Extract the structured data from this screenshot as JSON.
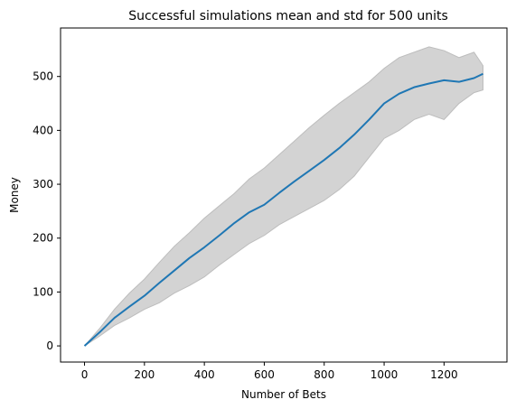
{
  "chart_data": {
    "type": "line",
    "title": "Successful simulations mean and std for 500 units",
    "xlabel": "Number of Bets",
    "ylabel": "Money",
    "xlim": [
      -80,
      1410
    ],
    "ylim": [
      -30,
      590
    ],
    "x_ticks": [
      0,
      200,
      400,
      600,
      800,
      1000,
      1200
    ],
    "y_ticks": [
      0,
      100,
      200,
      300,
      400,
      500
    ],
    "x_tick_labels": [
      "0",
      "200",
      "400",
      "600",
      "800",
      "1000",
      "1200"
    ],
    "y_tick_labels": [
      "0",
      "100",
      "200",
      "300",
      "400",
      "500"
    ],
    "grid": false,
    "legend": "none",
    "colors": {
      "mean_line": "#1f77b4",
      "std_band_fill": "#d3d3d3",
      "std_band_edge": "#bdbdbd"
    },
    "series": [
      {
        "values_x": [
          0,
          50,
          100,
          150,
          200,
          250,
          300,
          350,
          400,
          450,
          500,
          550,
          600,
          650,
          700,
          750,
          800,
          850,
          900,
          950,
          1000,
          1050,
          1100,
          1150,
          1200,
          1250,
          1300,
          1330
        ],
        "values": [
          0,
          25,
          52,
          73,
          93,
          117,
          140,
          163,
          183,
          205,
          228,
          248,
          262,
          284,
          305,
          325,
          345,
          367,
          392,
          420,
          450,
          468,
          480,
          487,
          493,
          490,
          497,
          505
        ]
      }
    ],
    "band": {
      "x": [
        0,
        50,
        100,
        150,
        200,
        250,
        300,
        350,
        400,
        450,
        500,
        550,
        600,
        650,
        700,
        750,
        800,
        850,
        900,
        950,
        1000,
        1050,
        1100,
        1150,
        1200,
        1250,
        1300,
        1330
      ],
      "upper": [
        0,
        32,
        68,
        98,
        124,
        155,
        185,
        210,
        237,
        260,
        283,
        310,
        330,
        355,
        380,
        405,
        428,
        450,
        470,
        490,
        515,
        535,
        545,
        555,
        548,
        535,
        545,
        520
      ],
      "lower": [
        0,
        18,
        38,
        52,
        68,
        80,
        98,
        112,
        128,
        150,
        170,
        190,
        205,
        225,
        240,
        255,
        270,
        290,
        315,
        350,
        385,
        400,
        420,
        430,
        420,
        450,
        470,
        475
      ]
    }
  }
}
